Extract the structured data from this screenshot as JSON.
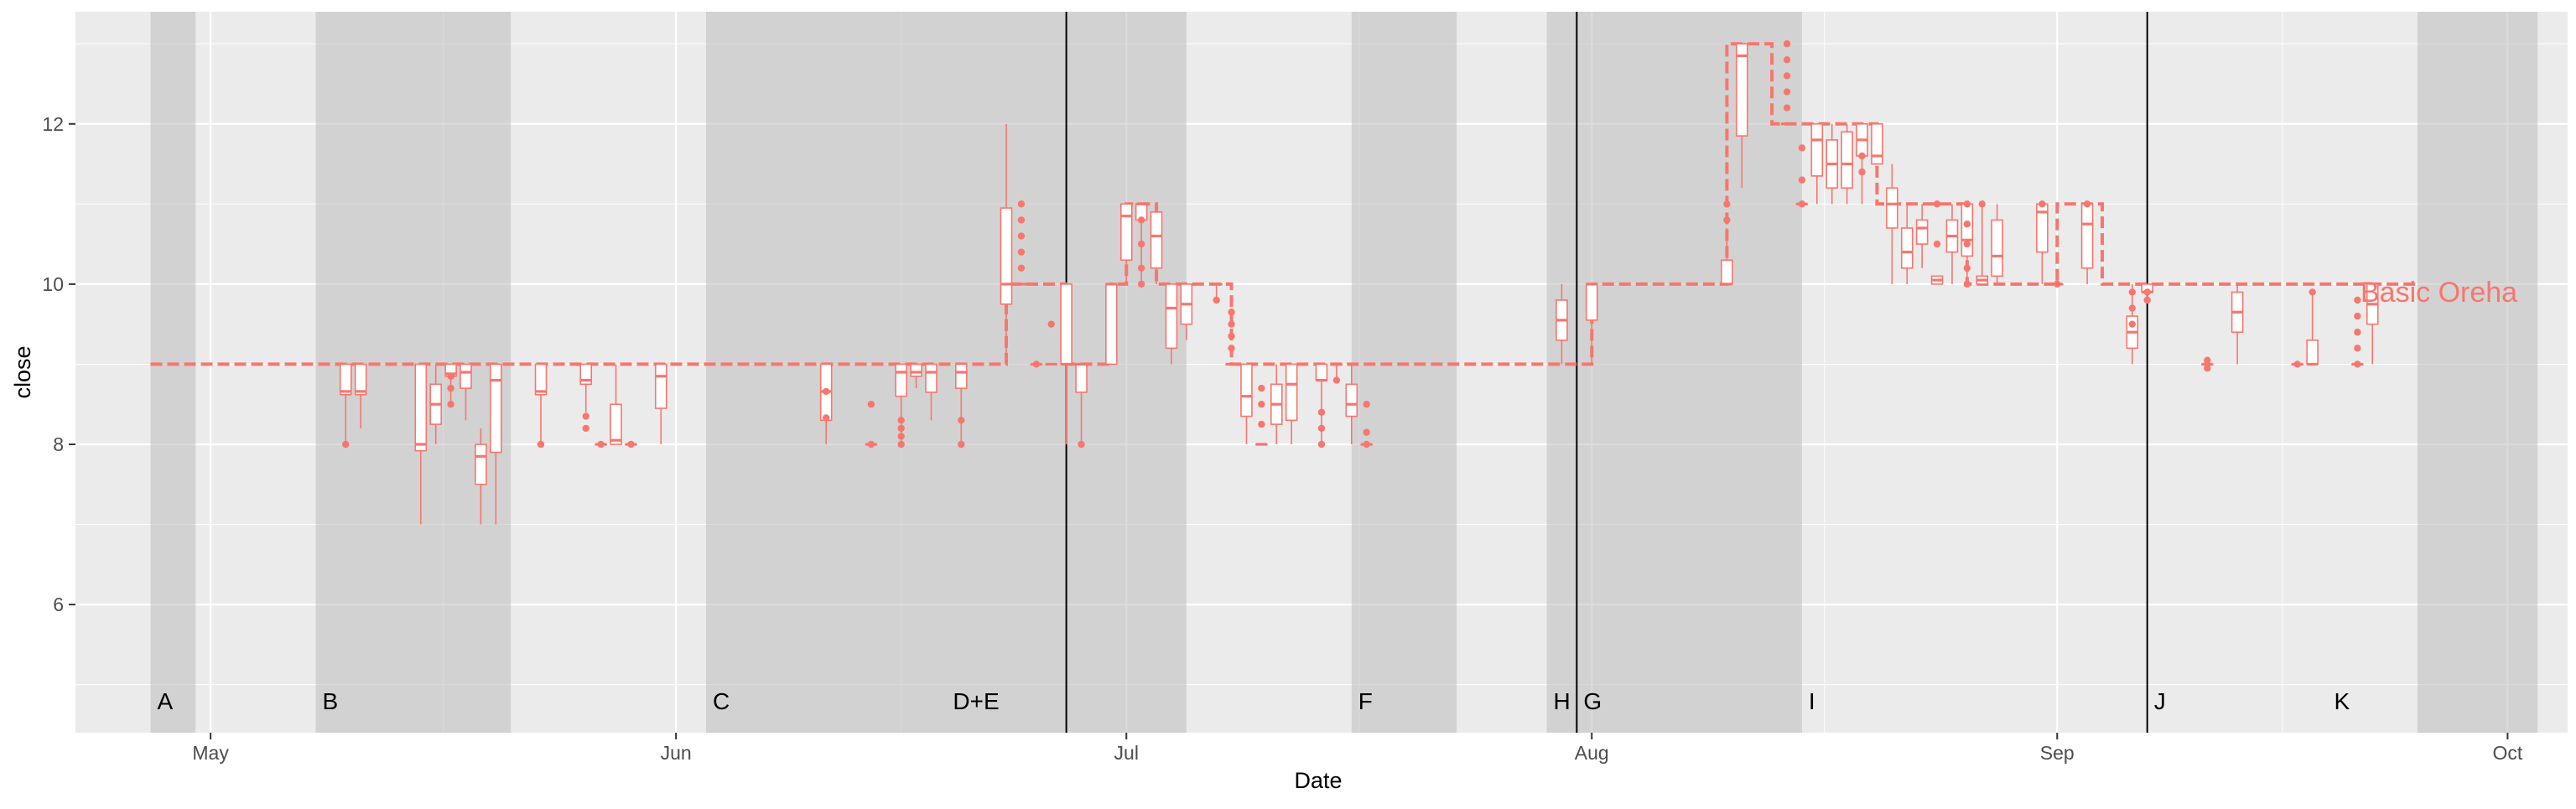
{
  "chart_data": {
    "type": "boxplot",
    "title": "",
    "xlabel": "Date",
    "ylabel": "close",
    "xlim": [
      "2024-04-22",
      "2024-10-05"
    ],
    "ylim": [
      4.4,
      13.4
    ],
    "x_ticks": [
      {
        "date": "2024-05-01",
        "label": "May"
      },
      {
        "date": "2024-06-01",
        "label": "Jun"
      },
      {
        "date": "2024-07-01",
        "label": "Jul"
      },
      {
        "date": "2024-08-01",
        "label": "Aug"
      },
      {
        "date": "2024-09-01",
        "label": "Sep"
      },
      {
        "date": "2024-10-01",
        "label": "Oct"
      }
    ],
    "y_ticks": [
      6,
      8,
      10,
      12
    ],
    "grid": true,
    "colors": {
      "series": "#F8766D",
      "panel": "#EBEBEB",
      "shade": "#BEBEBE",
      "vline": "#000000",
      "grid": "#FFFFFF"
    },
    "series": [
      {
        "name": "Basic Oreha",
        "label_position": "end"
      }
    ],
    "shaded_regions": [
      {
        "start": "2024-04-27",
        "end": "2024-04-30"
      },
      {
        "start": "2024-05-08",
        "end": "2024-05-21"
      },
      {
        "start": "2024-06-03",
        "end": "2024-06-27"
      },
      {
        "start": "2024-06-27",
        "end": "2024-07-05"
      },
      {
        "start": "2024-07-16",
        "end": "2024-07-23"
      },
      {
        "start": "2024-07-29",
        "end": "2024-08-15"
      },
      {
        "start": "2024-09-25",
        "end": "2024-10-03"
      }
    ],
    "vlines": [
      "2024-06-27",
      "2024-07-31",
      "2024-09-07"
    ],
    "annotations": [
      {
        "date": "2024-04-27",
        "text": "A"
      },
      {
        "date": "2024-05-08",
        "text": "B"
      },
      {
        "date": "2024-06-03",
        "text": "C"
      },
      {
        "date": "2024-06-19",
        "text": "D+E"
      },
      {
        "date": "2024-07-16",
        "text": "F"
      },
      {
        "date": "2024-07-31",
        "text": "G"
      },
      {
        "date": "2024-07-29",
        "text": "H"
      },
      {
        "date": "2024-08-15",
        "text": "I"
      },
      {
        "date": "2024-09-07",
        "text": "J"
      },
      {
        "date": "2024-09-19",
        "text": "K"
      }
    ],
    "median_line": [
      {
        "date": "2024-04-27",
        "value": 9
      },
      {
        "date": "2024-06-23",
        "value": 9
      },
      {
        "date": "2024-06-23",
        "value": 10
      },
      {
        "date": "2024-06-27",
        "value": 10
      },
      {
        "date": "2024-06-27",
        "value": 9
      },
      {
        "date": "2024-06-30",
        "value": 9
      },
      {
        "date": "2024-06-30",
        "value": 10
      },
      {
        "date": "2024-07-01",
        "value": 10
      },
      {
        "date": "2024-07-01",
        "value": 11
      },
      {
        "date": "2024-07-03",
        "value": 11
      },
      {
        "date": "2024-07-03",
        "value": 10
      },
      {
        "date": "2024-07-08",
        "value": 10
      },
      {
        "date": "2024-07-08",
        "value": 9
      },
      {
        "date": "2024-08-01",
        "value": 9
      },
      {
        "date": "2024-08-01",
        "value": 10
      },
      {
        "date": "2024-08-10",
        "value": 10
      },
      {
        "date": "2024-08-10",
        "value": 13
      },
      {
        "date": "2024-08-13",
        "value": 13
      },
      {
        "date": "2024-08-13",
        "value": 12
      },
      {
        "date": "2024-08-20",
        "value": 12
      },
      {
        "date": "2024-08-20",
        "value": 11
      },
      {
        "date": "2024-08-26",
        "value": 11
      },
      {
        "date": "2024-08-26",
        "value": 10
      },
      {
        "date": "2024-09-01",
        "value": 10
      },
      {
        "date": "2024-09-01",
        "value": 11
      },
      {
        "date": "2024-09-04",
        "value": 11
      },
      {
        "date": "2024-09-04",
        "value": 10
      },
      {
        "date": "2024-09-25",
        "value": 10
      }
    ],
    "boxes": [
      {
        "date": "2024-05-10",
        "low": 8.0,
        "q1": 8.62,
        "median": 8.66,
        "q3": 9.0,
        "high": 9.0,
        "outliers": [
          8
        ]
      },
      {
        "date": "2024-05-11",
        "low": 8.2,
        "q1": 8.62,
        "median": 8.66,
        "q3": 9.0,
        "high": 9.0,
        "outliers": []
      },
      {
        "date": "2024-05-15",
        "low": 7.0,
        "q1": 7.92,
        "median": 8.0,
        "q3": 9.0,
        "high": 9.0,
        "outliers": []
      },
      {
        "date": "2024-05-16",
        "low": 8.0,
        "q1": 8.25,
        "median": 8.5,
        "q3": 8.75,
        "high": 9.0,
        "outliers": []
      },
      {
        "date": "2024-05-17",
        "low": 8.5,
        "q1": 8.85,
        "median": 8.88,
        "q3": 9.0,
        "high": 9.0,
        "outliers": [
          8.5,
          8.7,
          8.85
        ]
      },
      {
        "date": "2024-05-18",
        "low": 8.3,
        "q1": 8.7,
        "median": 8.9,
        "q3": 9.0,
        "high": 9.0,
        "outliers": []
      },
      {
        "date": "2024-05-19",
        "low": 7.0,
        "q1": 7.5,
        "median": 7.85,
        "q3": 8.0,
        "high": 8.2,
        "outliers": []
      },
      {
        "date": "2024-05-20",
        "low": 7.0,
        "q1": 7.9,
        "median": 8.8,
        "q3": 9.0,
        "high": 9.0,
        "outliers": []
      },
      {
        "date": "2024-05-23",
        "low": 8.0,
        "q1": 8.62,
        "median": 8.66,
        "q3": 9.0,
        "high": 9.0,
        "outliers": [
          8
        ]
      },
      {
        "date": "2024-05-26",
        "low": 8.4,
        "q1": 8.75,
        "median": 8.8,
        "q3": 9.0,
        "high": 9.0,
        "outliers": [
          8.2,
          8.35
        ]
      },
      {
        "date": "2024-05-27",
        "low": 8.0,
        "q1": 8.0,
        "median": 8.0,
        "q3": 8.0,
        "high": 8.0,
        "outliers": [
          8
        ]
      },
      {
        "date": "2024-05-28",
        "low": 8.0,
        "q1": 8.0,
        "median": 8.05,
        "q3": 8.5,
        "high": 9.0,
        "outliers": []
      },
      {
        "date": "2024-05-29",
        "low": 8.0,
        "q1": 8.0,
        "median": 8.0,
        "q3": 8.0,
        "high": 8.0,
        "outliers": [
          8
        ]
      },
      {
        "date": "2024-05-31",
        "low": 8.0,
        "q1": 8.45,
        "median": 8.85,
        "q3": 9.0,
        "high": 9.0,
        "outliers": []
      },
      {
        "date": "2024-06-11",
        "low": 8.0,
        "q1": 8.3,
        "median": 8.66,
        "q3": 9.0,
        "high": 9.0,
        "outliers": [
          8.33,
          8.66
        ]
      },
      {
        "date": "2024-06-14",
        "low": 8.0,
        "q1": 8.0,
        "median": 8.0,
        "q3": 8.0,
        "high": 8.0,
        "outliers": [
          8,
          8.5
        ]
      },
      {
        "date": "2024-06-16",
        "low": 8.0,
        "q1": 8.6,
        "median": 8.9,
        "q3": 9.0,
        "high": 9.0,
        "outliers": [
          8,
          8.1,
          8.2,
          8.3
        ]
      },
      {
        "date": "2024-06-17",
        "low": 8.7,
        "q1": 8.85,
        "median": 8.9,
        "q3": 9.0,
        "high": 9.0,
        "outliers": []
      },
      {
        "date": "2024-06-18",
        "low": 8.3,
        "q1": 8.65,
        "median": 8.9,
        "q3": 9.0,
        "high": 9.0,
        "outliers": []
      },
      {
        "date": "2024-06-20",
        "low": 8.0,
        "q1": 8.7,
        "median": 8.9,
        "q3": 9.0,
        "high": 9.0,
        "outliers": [
          8,
          8.3
        ]
      },
      {
        "date": "2024-06-23",
        "low": 9.0,
        "q1": 9.75,
        "median": 10.0,
        "q3": 10.95,
        "high": 12.0,
        "outliers": []
      },
      {
        "date": "2024-06-24",
        "low": 10.0,
        "q1": 10.0,
        "median": 10.0,
        "q3": 10.0,
        "high": 10.0,
        "outliers": [
          10.2,
          10.4,
          10.6,
          10.8,
          11
        ]
      },
      {
        "date": "2024-06-25",
        "low": 9.0,
        "q1": 9.0,
        "median": 9.0,
        "q3": 9.0,
        "high": 9.0,
        "outliers": [
          9
        ]
      },
      {
        "date": "2024-06-26",
        "low": 9.0,
        "q1": 9.0,
        "median": 9.0,
        "q3": 9.0,
        "high": 9.0,
        "outliers": [
          9.5
        ]
      },
      {
        "date": "2024-06-27",
        "low": 8.0,
        "q1": 9.0,
        "median": 9.0,
        "q3": 10.0,
        "high": 10.0,
        "outliers": []
      },
      {
        "date": "2024-06-28",
        "low": 8.0,
        "q1": 8.65,
        "median": 9.0,
        "q3": 9.0,
        "high": 9.0,
        "outliers": [
          8
        ]
      },
      {
        "date": "2024-06-30",
        "low": 9.0,
        "q1": 9.0,
        "median": 10.0,
        "q3": 10.0,
        "high": 10.0,
        "outliers": []
      },
      {
        "date": "2024-07-01",
        "low": 10.0,
        "q1": 10.3,
        "median": 10.85,
        "q3": 11.0,
        "high": 11.0,
        "outliers": []
      },
      {
        "date": "2024-07-02",
        "low": 10.0,
        "q1": 10.8,
        "median": 11.0,
        "q3": 11.0,
        "high": 11.0,
        "outliers": [
          10,
          10.2,
          10.5,
          10.8
        ]
      },
      {
        "date": "2024-07-03",
        "low": 10.0,
        "q1": 10.2,
        "median": 10.6,
        "q3": 10.9,
        "high": 11.0,
        "outliers": []
      },
      {
        "date": "2024-07-04",
        "low": 9.0,
        "q1": 9.2,
        "median": 9.7,
        "q3": 10.0,
        "high": 10.0,
        "outliers": []
      },
      {
        "date": "2024-07-05",
        "low": 9.3,
        "q1": 9.5,
        "median": 9.75,
        "q3": 10.0,
        "high": 10.0,
        "outliers": []
      },
      {
        "date": "2024-07-07",
        "low": 9.8,
        "q1": 10.0,
        "median": 10.0,
        "q3": 10.0,
        "high": 10.0,
        "outliers": [
          9.8
        ]
      },
      {
        "date": "2024-07-08",
        "low": 9.0,
        "q1": 9.0,
        "median": 9.0,
        "q3": 9.0,
        "high": 9.0,
        "outliers": [
          9.2,
          9.35,
          9.5,
          9.65
        ]
      },
      {
        "date": "2024-07-09",
        "low": 8.0,
        "q1": 8.35,
        "median": 8.6,
        "q3": 9.0,
        "high": 9.0,
        "outliers": []
      },
      {
        "date": "2024-07-10",
        "low": 8.0,
        "q1": 8.0,
        "median": 8.0,
        "q3": 8.0,
        "high": 8.0,
        "outliers": [
          8.25,
          8.5,
          8.7
        ]
      },
      {
        "date": "2024-07-11",
        "low": 8.0,
        "q1": 8.25,
        "median": 8.5,
        "q3": 8.75,
        "high": 9.0,
        "outliers": []
      },
      {
        "date": "2024-07-12",
        "low": 8.0,
        "q1": 8.3,
        "median": 8.75,
        "q3": 9.0,
        "high": 9.0,
        "outliers": []
      },
      {
        "date": "2024-07-14",
        "low": 8.0,
        "q1": 8.8,
        "median": 8.8,
        "q3": 9.0,
        "high": 9.0,
        "outliers": [
          8,
          8.2,
          8.4
        ]
      },
      {
        "date": "2024-07-15",
        "low": 8.8,
        "q1": 9.0,
        "median": 9.0,
        "q3": 9.0,
        "high": 9.0,
        "outliers": [
          8.8
        ]
      },
      {
        "date": "2024-07-16",
        "low": 8.0,
        "q1": 8.35,
        "median": 8.5,
        "q3": 8.75,
        "high": 9.0,
        "outliers": []
      },
      {
        "date": "2024-07-17",
        "low": 8.0,
        "q1": 8.0,
        "median": 8.0,
        "q3": 8.0,
        "high": 8.0,
        "outliers": [
          8,
          8.15,
          8.5
        ]
      },
      {
        "date": "2024-07-30",
        "low": 9.0,
        "q1": 9.3,
        "median": 9.55,
        "q3": 9.8,
        "high": 10.0,
        "outliers": []
      },
      {
        "date": "2024-08-01",
        "low": 9.0,
        "q1": 9.55,
        "median": 10.0,
        "q3": 10.0,
        "high": 10.0,
        "outliers": []
      },
      {
        "date": "2024-08-10",
        "low": 10.0,
        "q1": 10.0,
        "median": 10.0,
        "q3": 10.3,
        "high": 10.7,
        "outliers": [
          10.8,
          11
        ]
      },
      {
        "date": "2024-08-11",
        "low": 11.2,
        "q1": 11.85,
        "median": 12.85,
        "q3": 13.0,
        "high": 13.0,
        "outliers": []
      },
      {
        "date": "2024-08-14",
        "low": 12.0,
        "q1": 12.0,
        "median": 12.0,
        "q3": 12.0,
        "high": 12.0,
        "outliers": [
          12.2,
          12.4,
          12.6,
          12.8,
          13
        ]
      },
      {
        "date": "2024-08-15",
        "low": 11.0,
        "q1": 11.0,
        "median": 11.0,
        "q3": 11.0,
        "high": 11.0,
        "outliers": [
          11,
          11.3,
          11.7
        ]
      },
      {
        "date": "2024-08-16",
        "low": 11.0,
        "q1": 11.35,
        "median": 11.8,
        "q3": 12.0,
        "high": 12.0,
        "outliers": []
      },
      {
        "date": "2024-08-17",
        "low": 11.0,
        "q1": 11.2,
        "median": 11.5,
        "q3": 11.8,
        "high": 12.0,
        "outliers": []
      },
      {
        "date": "2024-08-18",
        "low": 11.0,
        "q1": 11.2,
        "median": 11.5,
        "q3": 11.9,
        "high": 12.0,
        "outliers": []
      },
      {
        "date": "2024-08-19",
        "low": 11.0,
        "q1": 11.6,
        "median": 11.8,
        "q3": 12.0,
        "high": 12.0,
        "outliers": [
          11.4,
          11.6
        ]
      },
      {
        "date": "2024-08-20",
        "low": 11.5,
        "q1": 11.5,
        "median": 11.6,
        "q3": 12.0,
        "high": 12.0,
        "outliers": []
      },
      {
        "date": "2024-08-21",
        "low": 10.0,
        "q1": 10.7,
        "median": 11.0,
        "q3": 11.2,
        "high": 11.5,
        "outliers": []
      },
      {
        "date": "2024-08-22",
        "low": 10.0,
        "q1": 10.2,
        "median": 10.4,
        "q3": 10.7,
        "high": 11.0,
        "outliers": []
      },
      {
        "date": "2024-08-23",
        "low": 10.2,
        "q1": 10.5,
        "median": 10.7,
        "q3": 10.8,
        "high": 11.0,
        "outliers": []
      },
      {
        "date": "2024-08-24",
        "low": 10.0,
        "q1": 10.0,
        "median": 10.05,
        "q3": 10.1,
        "high": 10.1,
        "outliers": [
          10.5,
          11
        ]
      },
      {
        "date": "2024-08-25",
        "low": 10.0,
        "q1": 10.4,
        "median": 10.6,
        "q3": 10.8,
        "high": 11.0,
        "outliers": []
      },
      {
        "date": "2024-08-26",
        "low": 10.0,
        "q1": 10.35,
        "median": 10.55,
        "q3": 11.0,
        "high": 11.0,
        "outliers": [
          10.0,
          10.2,
          10.5,
          10.75,
          11
        ]
      },
      {
        "date": "2024-08-27",
        "low": 10.0,
        "q1": 10.0,
        "median": 10.05,
        "q3": 10.1,
        "high": 11.0,
        "outliers": [
          11.0
        ]
      },
      {
        "date": "2024-08-28",
        "low": 10.0,
        "q1": 10.1,
        "median": 10.35,
        "q3": 10.8,
        "high": 11.0,
        "outliers": []
      },
      {
        "date": "2024-08-31",
        "low": 10.0,
        "q1": 10.4,
        "median": 10.9,
        "q3": 11.0,
        "high": 11.0,
        "outliers": [
          11
        ]
      },
      {
        "date": "2024-09-01",
        "low": 10.0,
        "q1": 10.0,
        "median": 10.0,
        "q3": 10.0,
        "high": 10.0,
        "outliers": [
          10
        ]
      },
      {
        "date": "2024-09-03",
        "low": 10.0,
        "q1": 10.2,
        "median": 10.75,
        "q3": 11.0,
        "high": 11.0,
        "outliers": [
          11
        ]
      },
      {
        "date": "2024-09-06",
        "low": 9.0,
        "q1": 9.2,
        "median": 9.4,
        "q3": 9.6,
        "high": 10.0,
        "outliers": [
          9.5,
          9.7,
          9.9
        ]
      },
      {
        "date": "2024-09-07",
        "low": 9.8,
        "q1": 9.9,
        "median": 9.9,
        "q3": 10.0,
        "high": 10.0,
        "outliers": [
          9.8,
          9.9
        ]
      },
      {
        "date": "2024-09-11",
        "low": 9.0,
        "q1": 9.0,
        "median": 9.0,
        "q3": 9.0,
        "high": 9.0,
        "outliers": [
          8.95,
          9.0,
          9.05
        ]
      },
      {
        "date": "2024-09-13",
        "low": 9.0,
        "q1": 9.4,
        "median": 9.65,
        "q3": 9.9,
        "high": 10.0,
        "outliers": []
      },
      {
        "date": "2024-09-17",
        "low": 9.0,
        "q1": 9.0,
        "median": 9.0,
        "q3": 9.0,
        "high": 9.0,
        "outliers": [
          9.0
        ]
      },
      {
        "date": "2024-09-18",
        "low": 9.0,
        "q1": 9.0,
        "median": 9.0,
        "q3": 9.3,
        "high": 9.9,
        "outliers": [
          9.9
        ]
      },
      {
        "date": "2024-09-21",
        "low": 9.0,
        "q1": 9.0,
        "median": 9.0,
        "q3": 9.0,
        "high": 9.0,
        "outliers": [
          9.0,
          9.2,
          9.4,
          9.6,
          9.8
        ]
      },
      {
        "date": "2024-09-22",
        "low": 9.0,
        "q1": 9.5,
        "median": 9.75,
        "q3": 10.0,
        "high": 10.0,
        "outliers": []
      }
    ]
  }
}
